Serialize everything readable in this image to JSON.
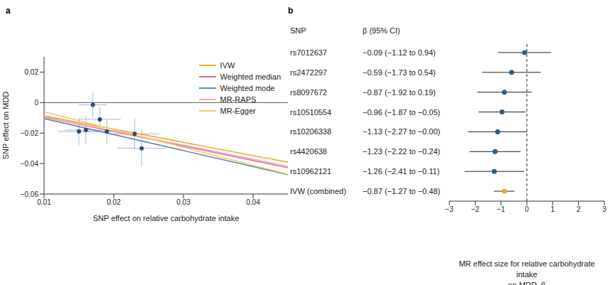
{
  "chart_data": [
    {
      "type": "scatter",
      "title": "a",
      "xlabel": "SNP effect on relative carbohydrate intake",
      "ylabel": "SNP effect on MDD",
      "xlim": [
        0.01,
        0.045
      ],
      "xticks": [
        0.01,
        0.02,
        0.03,
        0.04
      ],
      "ylim": [
        -0.06,
        0.03
      ],
      "yticks": [
        {
          "value": -0.06,
          "label": "−0.06"
        },
        {
          "value": -0.04,
          "label": "−0.04"
        },
        {
          "value": -0.02,
          "label": "−0.02"
        },
        0,
        0.02
      ],
      "reference_y": 0,
      "legend": "upper right",
      "color": "#2b4b6f",
      "x": [
        0.017,
        0.018,
        0.015,
        0.016,
        0.019,
        0.023,
        0.024
      ],
      "values": [
        -0.0015,
        -0.011,
        -0.019,
        -0.018,
        -0.019,
        -0.0205,
        -0.03
      ],
      "x_error": [
        0.002,
        0.003,
        0.003,
        0.003,
        0.003,
        0.0035,
        0.0035
      ],
      "y_error": [
        0.008,
        0.008,
        0.009,
        0.009,
        0.008,
        0.01,
        0.012
      ],
      "lines": [
        {
          "name": "IVW",
          "color": "#f5a623",
          "slope": -0.87,
          "intercept": 0
        },
        {
          "name": "Weighted median",
          "color": "#e8669a",
          "slope": -0.95,
          "intercept": 0
        },
        {
          "name": "Weighted mode",
          "color": "#5a8ab5",
          "slope": -1.05,
          "intercept": 0
        },
        {
          "name": "MR-RAPS",
          "color": "#f4a9bd",
          "slope": -0.93,
          "intercept": 0
        },
        {
          "name": "MR-Egger",
          "color": "#f0d264",
          "slope": -1.17,
          "intercept": 0.0057
        }
      ]
    },
    {
      "type": "forest",
      "title": "b",
      "columns": [
        "SNP",
        "β (95% CI)"
      ],
      "categories": [
        "rs7012637",
        "rs2472297",
        "rs8097672",
        "rs10510554",
        "rs10206338",
        "rs4420638",
        "rs10962121",
        "IVW (combined)"
      ],
      "values": [
        -0.09,
        -0.59,
        -0.87,
        -0.96,
        -1.13,
        -1.23,
        -1.26,
        -0.87
      ],
      "lower": [
        -1.12,
        -1.73,
        -1.92,
        -1.87,
        -2.27,
        -2.22,
        -2.41,
        -1.27
      ],
      "upper": [
        0.94,
        0.54,
        0.19,
        -0.05,
        0,
        -0.24,
        -0.11,
        -0.48
      ],
      "value_labels": [
        "−0.09 (−1.12 to 0.94)",
        "−0.59 (−1.73 to 0.54)",
        "−0.87 (−1.92 to 0.19)",
        "−0.96 (−1.87 to −0.05)",
        "−1.13 (−2.27 to −0.00)",
        "−1.23 (−2.22 to −0.24)",
        "−1.26 (−2.41 to −0.11)",
        "−0.87 (−1.27 to −0.48)"
      ],
      "colors": [
        "#2b5f80",
        "#2b5f80",
        "#2b5f80",
        "#2b5f80",
        "#2b5f80",
        "#2b5f80",
        "#2b5f80",
        "#f5a623"
      ],
      "xlim": [
        -3,
        3
      ],
      "xticks": [
        {
          "value": -3,
          "label": "−3"
        },
        {
          "value": -2,
          "label": "−2"
        },
        {
          "value": -1,
          "label": "−1"
        },
        0,
        1,
        2,
        3
      ],
      "xlabel": "MR effect size for relative carbohydrate intake\non MDD, β",
      "reference_x": 0
    }
  ]
}
